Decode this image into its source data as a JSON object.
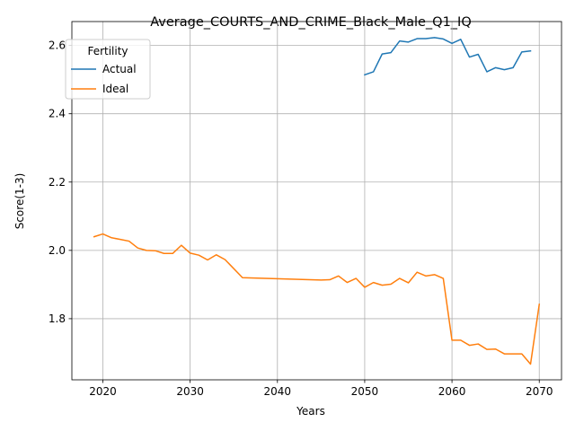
{
  "chart_data": {
    "type": "line",
    "title": "Average_COURTS_AND_CRIME_Black_Male_Q1_IQ",
    "xlabel": "Years",
    "ylabel": "Score(1-3)",
    "xlim": [
      2016.45,
      2072.55
    ],
    "ylim": [
      1.621,
      2.67
    ],
    "xticks": [
      2020,
      2030,
      2040,
      2050,
      2060,
      2070
    ],
    "yticks": [
      1.8,
      2.0,
      2.2,
      2.4,
      2.6
    ],
    "xtick_labels": [
      "2020",
      "2030",
      "2040",
      "2050",
      "2060",
      "2070"
    ],
    "ytick_labels": [
      "1.8",
      "2.0",
      "2.2",
      "2.4",
      "2.6"
    ],
    "grid": true,
    "legend": {
      "title": "Fertility",
      "placement": "top-left",
      "entries": [
        "Actual",
        "Ideal"
      ]
    },
    "series": [
      {
        "name": "Actual",
        "color": "#1f77b4",
        "x": [
          2050,
          2051,
          2052,
          2053,
          2054,
          2055,
          2056,
          2057,
          2058,
          2059,
          2060,
          2061,
          2062,
          2063,
          2064,
          2065,
          2066,
          2067,
          2068,
          2069
        ],
        "y": [
          2.514,
          2.523,
          2.575,
          2.579,
          2.613,
          2.61,
          2.62,
          2.62,
          2.623,
          2.619,
          2.606,
          2.618,
          2.566,
          2.574,
          2.523,
          2.535,
          2.529,
          2.535,
          2.581,
          2.584
        ]
      },
      {
        "name": "Ideal",
        "color": "#ff7f0e",
        "x": [
          2019,
          2020,
          2021,
          2022,
          2023,
          2024,
          2025,
          2026,
          2027,
          2028,
          2029,
          2030,
          2031,
          2032,
          2033,
          2034,
          2036,
          2045,
          2046,
          2047,
          2048,
          2049,
          2050,
          2051,
          2052,
          2053,
          2054,
          2055,
          2056,
          2057,
          2058,
          2059,
          2060,
          2061,
          2062,
          2063,
          2064,
          2065,
          2066,
          2067,
          2068,
          2069,
          2070
        ],
        "y": [
          2.04,
          2.048,
          2.037,
          2.032,
          2.027,
          2.007,
          2.0,
          1.999,
          1.991,
          1.991,
          2.015,
          1.992,
          1.986,
          1.972,
          1.987,
          1.973,
          1.92,
          1.913,
          1.914,
          1.925,
          1.906,
          1.918,
          1.892,
          1.906,
          1.898,
          1.901,
          1.918,
          1.905,
          1.936,
          1.925,
          1.929,
          1.918,
          1.737,
          1.737,
          1.722,
          1.726,
          1.71,
          1.711,
          1.697,
          1.697,
          1.697,
          1.667,
          1.842
        ]
      }
    ]
  }
}
